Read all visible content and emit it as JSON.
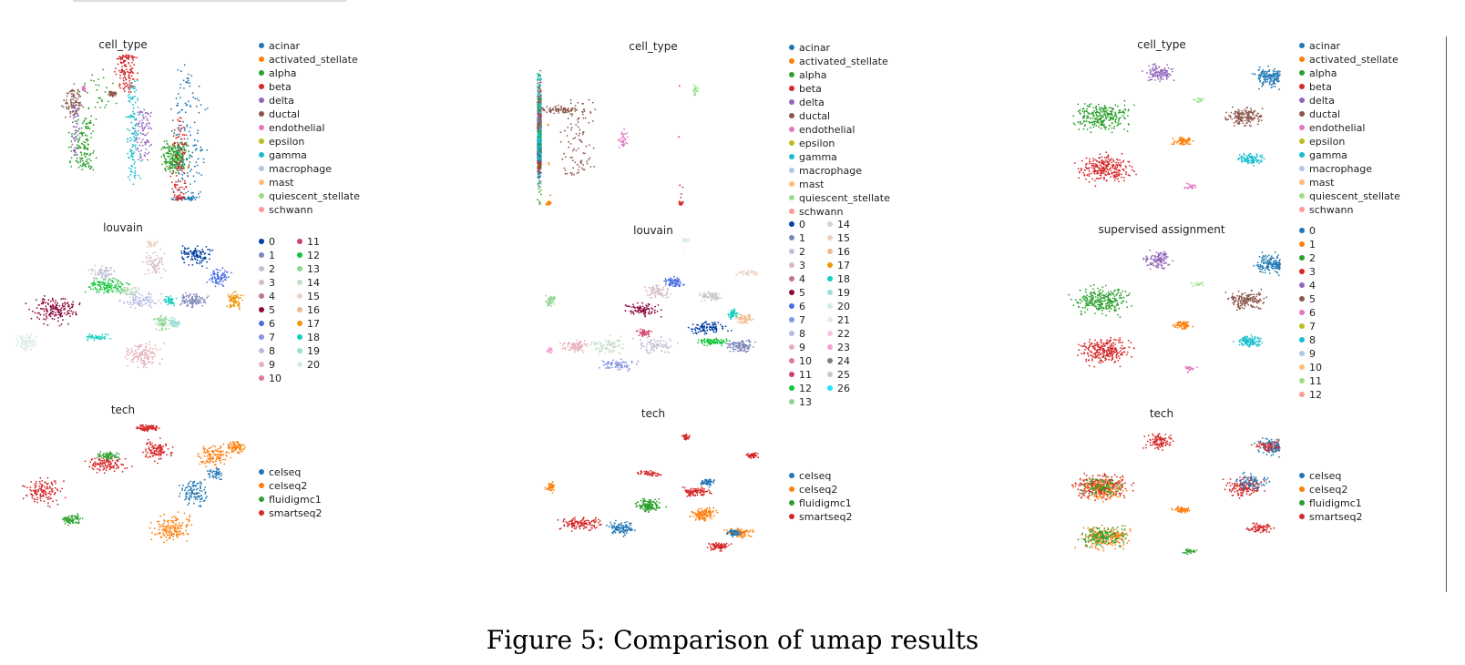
{
  "figure": {
    "caption": "Figure 5: Comparison of umap results"
  },
  "palettes": {
    "cell_type": [
      "#1f77b4",
      "#ff7f0e",
      "#2ca02c",
      "#d62728",
      "#9467bd",
      "#8c564b",
      "#e377c2",
      "#bcbd22",
      "#17becf",
      "#aec7e8",
      "#ffbb78",
      "#98df8a",
      "#ff9896"
    ],
    "tech": [
      "#1f77b4",
      "#ff7f0e",
      "#2ca02c",
      "#d62728"
    ],
    "louvain": [
      "#023fa5",
      "#7d87b9",
      "#bec1d4",
      "#d6bcc0",
      "#bb7784",
      "#8e063b",
      "#4a6fe3",
      "#8595e1",
      "#b5bbe3",
      "#e6afb9",
      "#e07b91",
      "#d33f6a",
      "#11c638",
      "#8dd593",
      "#c6dec7",
      "#ead3c6",
      "#f0b98d",
      "#ef9708",
      "#0fcfc0",
      "#9cded6",
      "#d5eae7",
      "#f3e1eb",
      "#f6c4e1",
      "#f79cd4",
      "#7f7f7f",
      "#c7c7c7",
      "#1ce6ff"
    ]
  },
  "panels": [
    {
      "id": "p1",
      "title": "cell_type",
      "palette": "cell_type",
      "legend": [
        "acinar",
        "activated_stellate",
        "alpha",
        "beta",
        "delta",
        "ductal",
        "endothelial",
        "epsilon",
        "gamma",
        "macrophage",
        "mast",
        "quiescent_stellate",
        "schwann"
      ]
    },
    {
      "id": "p2",
      "title": "cell_type",
      "palette": "cell_type",
      "legend": [
        "acinar",
        "activated_stellate",
        "alpha",
        "beta",
        "delta",
        "ductal",
        "endothelial",
        "epsilon",
        "gamma",
        "macrophage",
        "mast",
        "quiescent_stellate",
        "schwann"
      ]
    },
    {
      "id": "p3",
      "title": "cell_type",
      "palette": "cell_type",
      "legend": [
        "acinar",
        "activated_stellate",
        "alpha",
        "beta",
        "delta",
        "ductal",
        "endothelial",
        "epsilon",
        "gamma",
        "macrophage",
        "mast",
        "quiescent_stellate",
        "schwann"
      ]
    },
    {
      "id": "p4",
      "title": "louvain",
      "palette": "louvain",
      "legend": [
        "0",
        "1",
        "2",
        "3",
        "4",
        "5",
        "6",
        "7",
        "8",
        "9",
        "10",
        "11",
        "12",
        "13",
        "14",
        "15",
        "16",
        "17",
        "18",
        "19",
        "20"
      ]
    },
    {
      "id": "p5",
      "title": "louvain",
      "palette": "louvain",
      "legend": [
        "0",
        "1",
        "2",
        "3",
        "4",
        "5",
        "6",
        "7",
        "8",
        "9",
        "10",
        "11",
        "12",
        "13",
        "14",
        "15",
        "16",
        "17",
        "18",
        "19",
        "20",
        "21",
        "22",
        "23",
        "24",
        "25",
        "26"
      ]
    },
    {
      "id": "p6",
      "title": "supervised assignment",
      "palette": "cell_type",
      "legend": [
        "0",
        "1",
        "2",
        "3",
        "4",
        "5",
        "6",
        "7",
        "8",
        "9",
        "10",
        "11",
        "12"
      ]
    },
    {
      "id": "p7",
      "title": "tech",
      "palette": "tech",
      "legend": [
        "celseq",
        "celseq2",
        "fluidigmc1",
        "smartseq2"
      ]
    },
    {
      "id": "p8",
      "title": "tech",
      "palette": "tech",
      "legend": [
        "celseq",
        "celseq2",
        "fluidigmc1",
        "smartseq2"
      ]
    },
    {
      "id": "p9",
      "title": "tech",
      "palette": "tech",
      "legend": [
        "celseq",
        "celseq2",
        "fluidigmc1",
        "smartseq2"
      ]
    }
  ]
}
